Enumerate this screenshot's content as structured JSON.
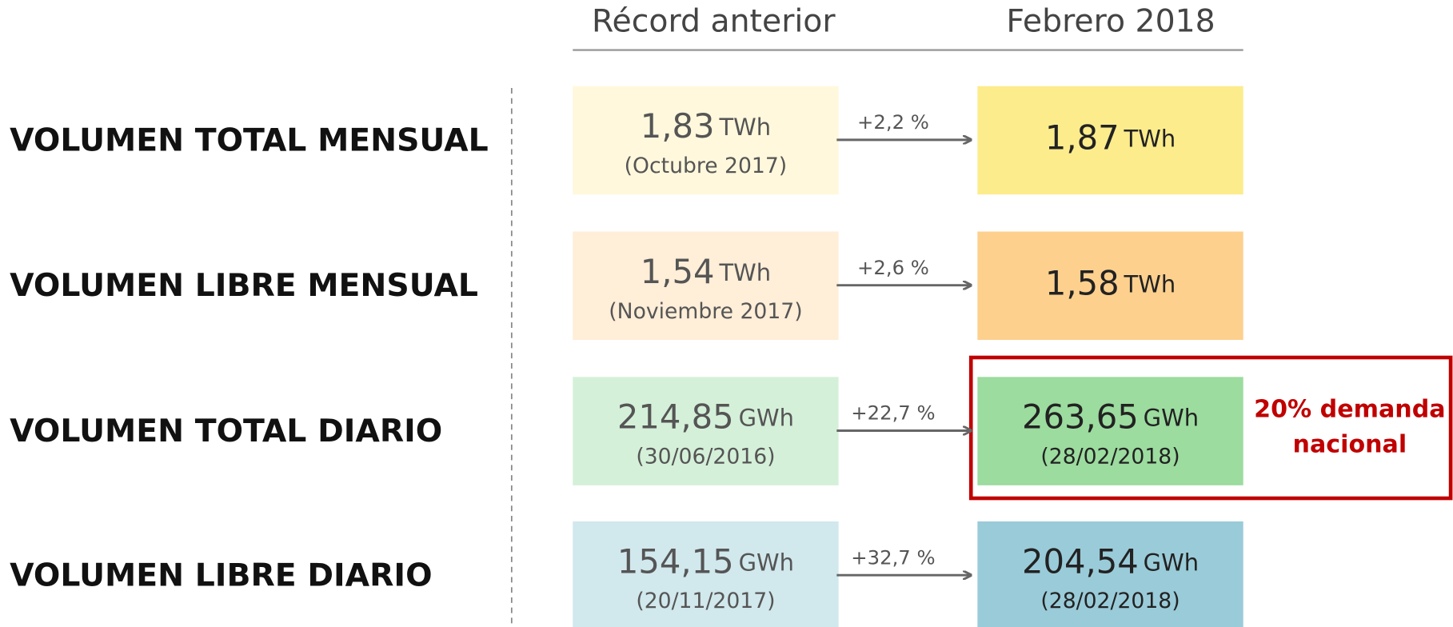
{
  "headers": [
    "Récord anterior",
    "Febrero 2018"
  ],
  "rows": [
    {
      "label": "VOLUMEN TOTAL MENSUAL",
      "previous": {
        "value": "1,83",
        "unit": "TWh",
        "date": "(Octubre 2017)"
      },
      "change": "+2,2 %",
      "current": {
        "value": "1,87",
        "unit": "TWh"
      }
    },
    {
      "label": "VOLUMEN LIBRE MENSUAL",
      "previous": {
        "value": "1,54",
        "unit": "TWh",
        "date": "(Noviembre 2017)"
      },
      "change": "+2,6 %",
      "current": {
        "value": "1,58",
        "unit": "TWh"
      }
    },
    {
      "label": "VOLUMEN TOTAL DIARIO",
      "previous": {
        "value": "214,85",
        "unit": "GWh",
        "date": "(30/06/2016)"
      },
      "change": "+22,7 %",
      "current": {
        "value": "263,65",
        "unit": "GWh",
        "date": "(28/02/2018)"
      }
    },
    {
      "label": "VOLUMEN LIBRE DIARIO",
      "previous": {
        "value": "154,15",
        "unit": "GWh",
        "date": "(20/11/2017)"
      },
      "change": "+32,7 %",
      "current": {
        "value": "204,54",
        "unit": "GWh",
        "date": "(28/02/2018)"
      }
    }
  ],
  "note": [
    "20% demanda",
    "nacional"
  ]
}
